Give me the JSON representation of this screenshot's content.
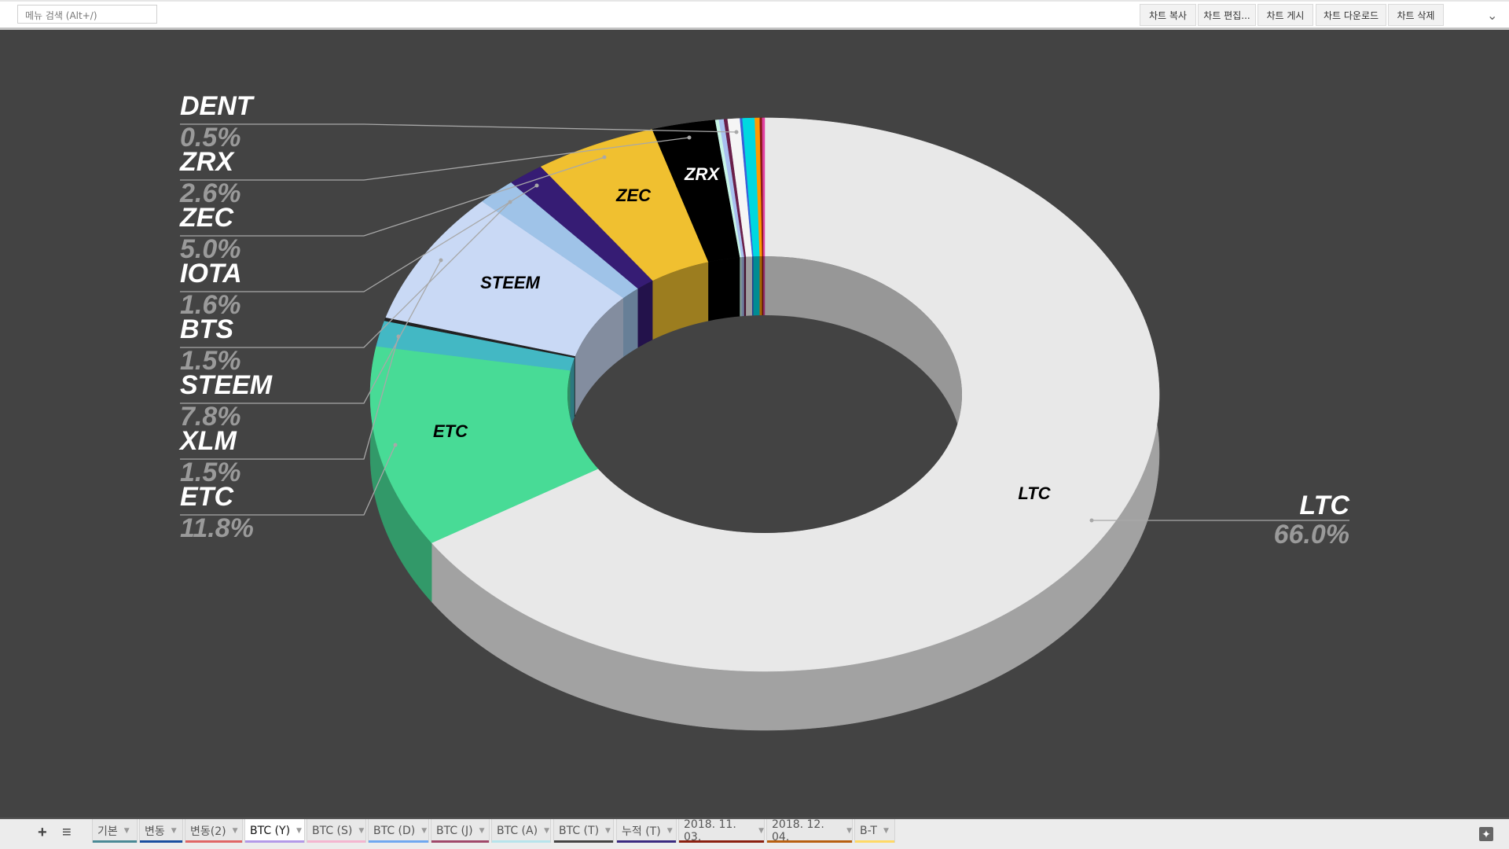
{
  "topbar": {
    "search_placeholder": "메뉴 검색 (Alt+/)",
    "buttons": [
      "차트 복사",
      "차트 편집...",
      "차트 게시",
      "차트 다운로드",
      "차트 삭제"
    ],
    "collapse_icon": "chevron-down-icon"
  },
  "bottombar": {
    "add_icon": "plus-icon",
    "list_icon": "menu-icon",
    "tabs": [
      {
        "label": "기본",
        "color": "#4a8a96"
      },
      {
        "label": "변동",
        "color": "#1a4fa0"
      },
      {
        "label": "변동(2)",
        "color": "#e06666"
      },
      {
        "label": "BTC (Y)",
        "color": "#b39ae8",
        "active": true
      },
      {
        "label": "BTC (S)",
        "color": "#f4b6d0"
      },
      {
        "label": "BTC (D)",
        "color": "#6fa8f0"
      },
      {
        "label": "BTC (J)",
        "color": "#a0486a"
      },
      {
        "label": "BTC (A)",
        "color": "#b8e4ec"
      },
      {
        "label": "BTC (T)",
        "color": "#444444"
      },
      {
        "label": "누적 (T)",
        "color": "#3a2a80"
      },
      {
        "label": "2018. 11. 03.",
        "color": "#8b2010"
      },
      {
        "label": "2018. 12. 04.",
        "color": "#b86010"
      },
      {
        "label": "B-T",
        "color": "#ffd966"
      }
    ],
    "explore_icon": "explore-icon"
  },
  "chart_data": {
    "type": "pie",
    "style": "3d-donut",
    "background": "#434343",
    "slices": [
      {
        "name": "LTC",
        "value": 66.0,
        "label": "66.0%",
        "color": "#e8e8e8"
      },
      {
        "name": "ETC",
        "value": 11.8,
        "label": "11.8%",
        "color": "#48db96"
      },
      {
        "name": "XLM",
        "value": 1.5,
        "label": "1.5%",
        "color": "#43b8c4"
      },
      {
        "name": "",
        "value": 0.2,
        "color": "#222222"
      },
      {
        "name": "STEEM",
        "value": 7.8,
        "label": "7.8%",
        "color": "#c9d9f5"
      },
      {
        "name": "IOTA",
        "value": 1.6,
        "label": "1.6%",
        "color": "#9fc3e8"
      },
      {
        "name": "BTS",
        "value": 1.5,
        "label": "1.5%",
        "color": "#361c74"
      },
      {
        "name": "ZEC",
        "value": 5.0,
        "label": "5.0%",
        "color": "#f0c030"
      },
      {
        "name": "ZRX",
        "value": 2.6,
        "label": "2.6%",
        "color": "#000000"
      },
      {
        "name": "",
        "value": 0.15,
        "color": "#c8f5e6"
      },
      {
        "name": "",
        "value": 0.2,
        "color": "#a9c0f0"
      },
      {
        "name": "",
        "value": 0.15,
        "color": "#6a1f4a"
      },
      {
        "name": "DENT",
        "value": 0.5,
        "label": "0.5%",
        "color": "#f5f5f5"
      },
      {
        "name": "",
        "value": 0.1,
        "color": "#3b5fd9"
      },
      {
        "name": "",
        "value": 0.5,
        "color": "#00d8e0"
      },
      {
        "name": "",
        "value": 0.2,
        "color": "#ff9a00"
      },
      {
        "name": "",
        "value": 0.1,
        "color": "#8b1a1a"
      },
      {
        "name": "",
        "value": 0.1,
        "color": "#e040a0"
      }
    ],
    "legend_left": [
      {
        "name": "DENT",
        "pct": "0.5%"
      },
      {
        "name": "ZRX",
        "pct": "2.6%"
      },
      {
        "name": "ZEC",
        "pct": "5.0%"
      },
      {
        "name": "IOTA",
        "pct": "1.6%"
      },
      {
        "name": "BTS",
        "pct": "1.5%"
      },
      {
        "name": "STEEM",
        "pct": "7.8%"
      },
      {
        "name": "XLM",
        "pct": "1.5%"
      },
      {
        "name": "ETC",
        "pct": "11.8%"
      }
    ],
    "legend_right": [
      {
        "name": "LTC",
        "pct": "66.0%"
      }
    ],
    "inner_labels": [
      "LTC",
      "ETC",
      "STEEM",
      "ZEC",
      "ZRX"
    ]
  }
}
